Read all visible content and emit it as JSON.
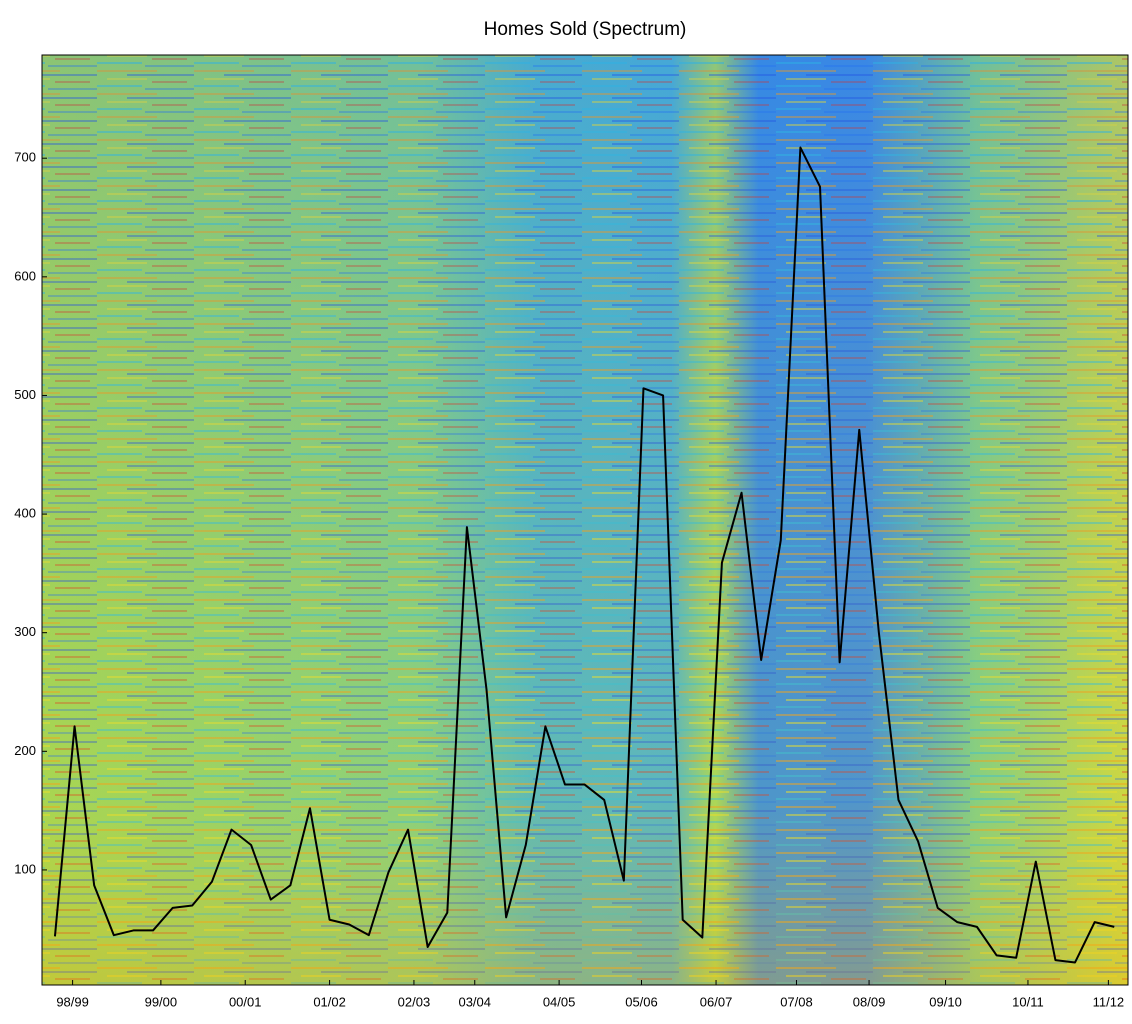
{
  "chart_data": {
    "type": "line",
    "title": "Homes Sold (Spectrum)",
    "x": [
      0,
      1,
      2,
      3,
      4,
      5,
      6,
      7,
      8,
      9,
      10,
      11,
      12,
      13,
      14,
      15,
      16,
      17,
      18,
      19,
      20,
      21,
      22,
      23,
      24,
      25,
      26,
      27,
      28,
      29,
      30,
      31,
      32,
      33,
      34,
      35,
      36,
      37,
      38,
      39,
      40,
      41,
      42,
      43,
      44,
      45,
      46,
      47,
      48,
      49,
      50,
      51,
      52,
      53,
      54
    ],
    "series": [
      {
        "color": "#000000",
        "values": [
          44,
          221,
          87,
          45,
          49,
          49,
          68,
          70,
          90,
          134,
          121,
          75,
          87,
          152,
          58,
          54,
          45,
          98,
          134,
          35,
          64,
          389,
          252,
          60,
          121,
          221,
          172,
          172,
          159,
          91,
          506,
          500,
          58,
          43,
          359,
          418,
          277,
          378,
          709,
          676,
          275,
          471,
          300,
          159,
          124,
          68,
          56,
          52,
          28,
          26,
          107,
          24,
          22,
          56,
          52
        ]
      }
    ],
    "xlim": [
      -0.66,
      54.7
    ],
    "xticks": [
      {
        "value": 0.9,
        "label": "98/99"
      },
      {
        "value": 5.4,
        "label": "99/00"
      },
      {
        "value": 9.7,
        "label": "00/01"
      },
      {
        "value": 14.0,
        "label": "01/02"
      },
      {
        "value": 18.3,
        "label": "02/03"
      },
      {
        "value": 21.4,
        "label": "03/04"
      },
      {
        "value": 25.7,
        "label": "04/05"
      },
      {
        "value": 29.9,
        "label": "05/06"
      },
      {
        "value": 33.7,
        "label": "06/07"
      },
      {
        "value": 37.8,
        "label": "07/08"
      },
      {
        "value": 41.5,
        "label": "08/09"
      },
      {
        "value": 45.4,
        "label": "09/10"
      },
      {
        "value": 49.6,
        "label": "10/11"
      },
      {
        "value": 53.7,
        "label": "11/12"
      }
    ],
    "ylim": [
      3,
      787
    ],
    "yticks": [
      100,
      200,
      300,
      400,
      500,
      600,
      700
    ]
  }
}
